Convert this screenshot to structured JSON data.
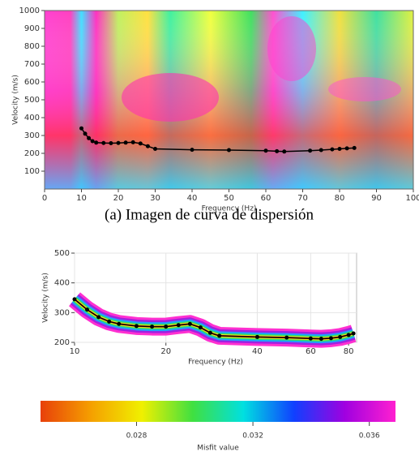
{
  "chart_data": [
    {
      "type": "line",
      "xlabel": "Frequency (Hz)",
      "ylabel": "Velocity (m/s)",
      "caption": "(a) Imagen de curva de dispersión",
      "xlim": [
        0,
        100
      ],
      "xticks": [
        0,
        10,
        20,
        30,
        40,
        50,
        60,
        70,
        80,
        90,
        100
      ],
      "ylim": [
        0,
        1000
      ],
      "yticks": [
        100,
        200,
        300,
        400,
        500,
        600,
        700,
        800,
        900,
        1000
      ],
      "x": [
        10,
        11,
        12,
        13,
        14,
        16,
        18,
        20,
        22,
        24,
        26,
        28,
        30,
        40,
        50,
        60,
        63,
        65,
        72,
        75,
        78,
        80,
        82,
        84
      ],
      "series": [
        {
          "color": "#000000",
          "values": [
            340,
            310,
            285,
            268,
            260,
            258,
            257,
            258,
            260,
            262,
            255,
            240,
            225,
            220,
            218,
            215,
            212,
            210,
            215,
            218,
            222,
            225,
            228,
            230
          ]
        }
      ]
    },
    {
      "type": "line",
      "xlabel": "Frequency (Hz)",
      "ylabel": "Velocity (m/s)",
      "log_x": true,
      "grid": true,
      "xlim": [
        10,
        85
      ],
      "xticks": [
        10,
        20,
        40,
        60,
        80
      ],
      "ylim": [
        200,
        500
      ],
      "yticks": [
        200,
        300,
        400,
        500
      ],
      "x": [
        10,
        11,
        12,
        13,
        14,
        16,
        18,
        20,
        22,
        24,
        26,
        28,
        30,
        40,
        50,
        60,
        65,
        70,
        75,
        80,
        83
      ],
      "series": [
        {
          "color": "#000000",
          "values": [
            345,
            310,
            285,
            270,
            262,
            255,
            253,
            253,
            258,
            262,
            250,
            232,
            222,
            218,
            216,
            213,
            212,
            214,
            218,
            225,
            230
          ]
        }
      ],
      "colorbar": {
        "label": "Misfit value",
        "lim": [
          0.0247,
          0.0369
        ],
        "ticks": [
          0.028,
          0.032,
          0.036
        ],
        "colors": [
          "#e8400a",
          "#f5a000",
          "#f0f000",
          "#40e040",
          "#00e0e0",
          "#1040ff",
          "#a000e0",
          "#ff20d0"
        ]
      }
    }
  ]
}
